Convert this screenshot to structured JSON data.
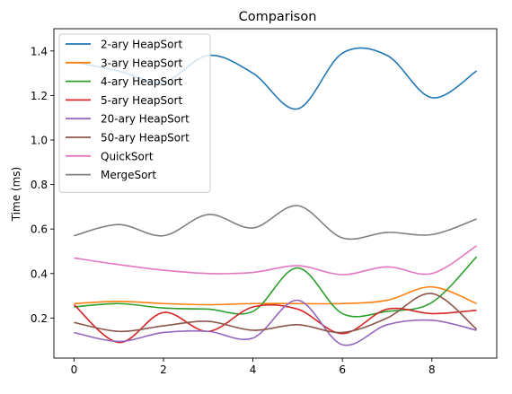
{
  "chart_data": {
    "type": "line",
    "title": "Comparison",
    "xlabel": "",
    "ylabel": "Time (ms)",
    "xlim": [
      -0.45,
      9.45
    ],
    "ylim": [
      0.02,
      1.5
    ],
    "xticks": [
      0,
      2,
      4,
      6,
      8
    ],
    "yticks": [
      0.2,
      0.4,
      0.6,
      0.8,
      1.0,
      1.2,
      1.4
    ],
    "grid": false,
    "legend_position": "top-left",
    "x": [
      0,
      1,
      2,
      3,
      4,
      5,
      6,
      7,
      8,
      9
    ],
    "series": [
      {
        "name": "2-ary HeapSort",
        "color": "#1f77b4",
        "values": [
          1.35,
          1.31,
          1.26,
          1.38,
          1.3,
          1.14,
          1.39,
          1.38,
          1.19,
          1.31
        ]
      },
      {
        "name": "3-ary HeapSort",
        "color": "#ff7f0e",
        "values": [
          0.265,
          0.275,
          0.265,
          0.26,
          0.265,
          0.265,
          0.265,
          0.28,
          0.34,
          0.265
        ]
      },
      {
        "name": "4-ary HeapSort",
        "color": "#2ca02c",
        "values": [
          0.25,
          0.265,
          0.245,
          0.24,
          0.23,
          0.425,
          0.22,
          0.23,
          0.27,
          0.475
        ]
      },
      {
        "name": "5-ary HeapSort",
        "color": "#d62728",
        "values": [
          0.26,
          0.09,
          0.225,
          0.14,
          0.25,
          0.24,
          0.13,
          0.24,
          0.22,
          0.235
        ]
      },
      {
        "name": "20-ary HeapSort",
        "color": "#9467bd",
        "values": [
          0.135,
          0.095,
          0.135,
          0.14,
          0.11,
          0.28,
          0.08,
          0.17,
          0.19,
          0.145
        ]
      },
      {
        "name": "50-ary HeapSort",
        "color": "#8c564b",
        "values": [
          0.18,
          0.14,
          0.165,
          0.185,
          0.145,
          0.17,
          0.135,
          0.2,
          0.31,
          0.15
        ]
      },
      {
        "name": "QuickSort",
        "color": "#e377c2",
        "values": [
          0.47,
          0.44,
          0.415,
          0.4,
          0.405,
          0.435,
          0.395,
          0.43,
          0.4,
          0.525
        ]
      },
      {
        "name": "MergeSort",
        "color": "#7f7f7f",
        "values": [
          0.57,
          0.62,
          0.57,
          0.665,
          0.605,
          0.705,
          0.56,
          0.585,
          0.575,
          0.645
        ]
      }
    ]
  }
}
